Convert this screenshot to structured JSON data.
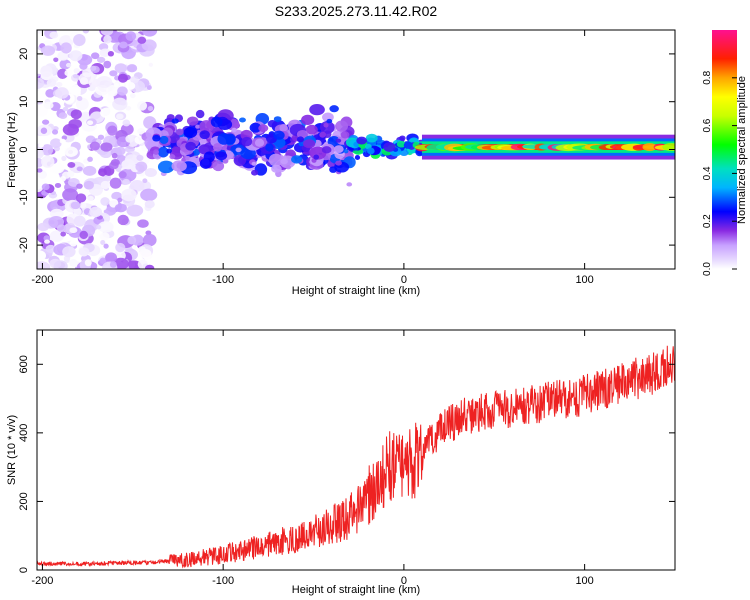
{
  "figure_title": "S233.2025.273.11.42.R02",
  "colors": {
    "snr_line": "#ee2222",
    "axis": "#000000",
    "background": "#ffffff"
  },
  "chart_data": [
    {
      "type": "heatmap",
      "title": "S233.2025.273.11.42.R02",
      "xlabel": "Height of straight line (km)",
      "ylabel": "Frequency (Hz)",
      "xlim": [
        -203,
        150
      ],
      "ylim": [
        -25,
        25
      ],
      "xticks": [
        -200,
        -100,
        0,
        100
      ],
      "yticks": [
        -20,
        -10,
        0,
        10,
        20
      ],
      "colorbar": {
        "label": "Normalized spectral amplitude",
        "range": [
          0,
          1
        ],
        "ticks": [
          0.0,
          0.2,
          0.4,
          0.6,
          0.8
        ],
        "tick_labels": [
          "0.0",
          "0.2",
          "0.4",
          "0.6",
          "0.8"
        ],
        "colormap": "rainbow"
      },
      "description_regions": [
        {
          "x_range": [
            -203,
            -140
          ],
          "freq_range": [
            -25,
            25
          ],
          "amplitude": [
            0.0,
            0.15
          ],
          "kind": "scattered noise"
        },
        {
          "x_range": [
            -140,
            -30
          ],
          "freq_range": [
            -8,
            10
          ],
          "amplitude": [
            0.1,
            0.3
          ],
          "kind": "broad signal"
        },
        {
          "x_range": [
            -30,
            10
          ],
          "freq_range": [
            -2,
            3
          ],
          "amplitude": [
            0.2,
            0.5
          ],
          "kind": "converging tone"
        },
        {
          "x_range": [
            10,
            150
          ],
          "freq_range": [
            0,
            1
          ],
          "amplitude": [
            0.4,
            1.0
          ],
          "kind": "stable carrier"
        }
      ]
    },
    {
      "type": "line",
      "xlabel": "Height of straight line (km)",
      "ylabel": "SNR (10 * v/v)",
      "xlim": [
        -203,
        150
      ],
      "ylim": [
        0,
        700
      ],
      "xticks": [
        -200,
        -100,
        0,
        100
      ],
      "yticks": [
        0,
        200,
        400,
        600
      ],
      "series": [
        {
          "name": "SNR",
          "color": "#ee2222",
          "x": [
            -203,
            -180,
            -160,
            -140,
            -120,
            -100,
            -80,
            -60,
            -40,
            -30,
            -20,
            -12,
            -8,
            0,
            10,
            20,
            30,
            40,
            60,
            80,
            100,
            120,
            140,
            150
          ],
          "y": [
            18,
            18,
            20,
            22,
            30,
            45,
            70,
            95,
            130,
            155,
            210,
            280,
            300,
            290,
            340,
            410,
            440,
            460,
            470,
            490,
            510,
            540,
            580,
            600
          ]
        }
      ]
    }
  ]
}
